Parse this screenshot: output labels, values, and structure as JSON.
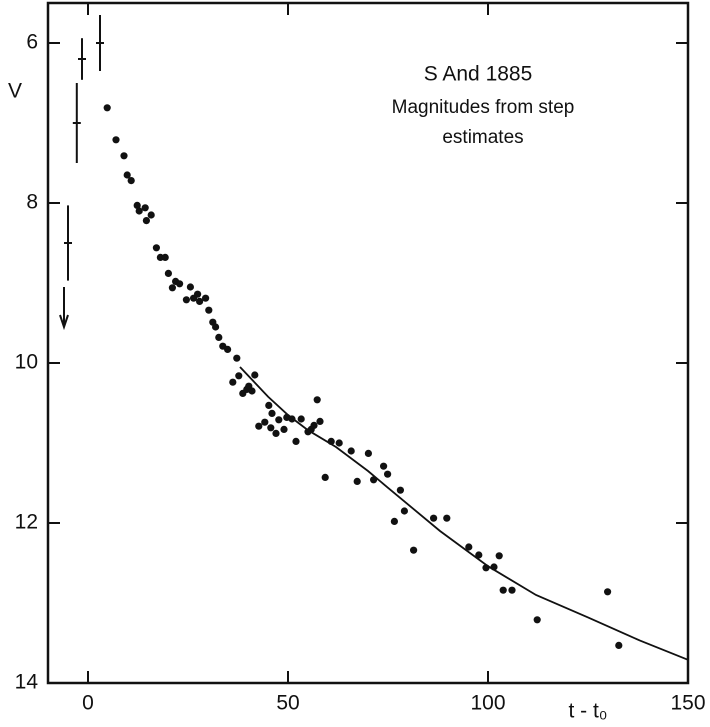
{
  "chart_data": {
    "type": "scatter",
    "title": "S And 1885",
    "subtitle": [
      "Magnitudes from step",
      "estimates"
    ],
    "xlabel": "t - t₀",
    "ylabel": "V",
    "xlim": [
      -10,
      150
    ],
    "ylim": [
      5.5,
      14
    ],
    "y_inverted": true,
    "xticks": [
      0,
      50,
      100,
      150
    ],
    "yticks": [
      6,
      8,
      10,
      12,
      14
    ],
    "color": "#111111",
    "series": [
      {
        "x": [
          4.8,
          7.0,
          9.0,
          9.8,
          10.8,
          12.3,
          12.8,
          14.3,
          14.6,
          15.8,
          17.1,
          18.1,
          19.3,
          20.1,
          21.1,
          21.9,
          22.9,
          24.6,
          25.6,
          26.4,
          27.4,
          27.9,
          29.4,
          30.2,
          31.2,
          31.9,
          32.7,
          33.7,
          34.9,
          37.2,
          36.2,
          37.7,
          38.7,
          39.7,
          40.2,
          41.7,
          41.0,
          42.7,
          44.2,
          45.2,
          46.0,
          45.7,
          47.0,
          47.7,
          49.0,
          49.7,
          51.0,
          52.0,
          53.3,
          55.0,
          55.8,
          57.3,
          56.5,
          58.0,
          59.3,
          60.8,
          62.8,
          65.8,
          67.3,
          70.1,
          71.4,
          73.9,
          74.9,
          76.6,
          78.1,
          79.1,
          81.4,
          86.4,
          89.7,
          95.2,
          97.7,
          99.5,
          101.5,
          102.8,
          103.8,
          106.0,
          112.3,
          129.9,
          132.7
        ],
        "values": [
          6.81,
          7.21,
          7.41,
          7.65,
          7.72,
          8.03,
          8.1,
          8.06,
          8.22,
          8.15,
          8.56,
          8.68,
          8.68,
          8.88,
          9.06,
          8.98,
          9.01,
          9.21,
          9.05,
          9.19,
          9.14,
          9.23,
          9.19,
          9.34,
          9.49,
          9.55,
          9.68,
          9.79,
          9.83,
          9.94,
          10.24,
          10.16,
          10.38,
          10.33,
          10.29,
          10.15,
          10.35,
          10.79,
          10.74,
          10.53,
          10.63,
          10.81,
          10.88,
          10.71,
          10.83,
          10.68,
          10.7,
          10.98,
          10.7,
          10.86,
          10.83,
          10.46,
          10.78,
          10.73,
          11.43,
          10.98,
          11.0,
          11.1,
          11.48,
          11.13,
          11.46,
          11.29,
          11.39,
          11.98,
          11.59,
          11.85,
          12.34,
          11.94,
          11.94,
          12.3,
          12.4,
          12.56,
          12.55,
          12.41,
          12.84,
          12.84,
          13.21,
          12.86,
          13.53
        ]
      },
      {
        "type": "line",
        "x": [
          38,
          45,
          50,
          55,
          62,
          70,
          75,
          88,
          100,
          112,
          125,
          138,
          150
        ],
        "values": [
          10.05,
          10.42,
          10.65,
          10.84,
          11.05,
          11.35,
          11.56,
          12.1,
          12.54,
          12.9,
          13.18,
          13.47,
          13.71
        ]
      },
      {
        "type": "errorbar",
        "x": [
          -1.5,
          -2.8,
          3.0,
          -5.0
        ],
        "values": [
          6.2,
          7.0,
          6.0,
          8.5
        ],
        "errors": [
          0.26,
          0.5,
          0.35,
          0.47
        ]
      }
    ],
    "limit": {
      "x": -6.0,
      "value": 9.05
    }
  }
}
